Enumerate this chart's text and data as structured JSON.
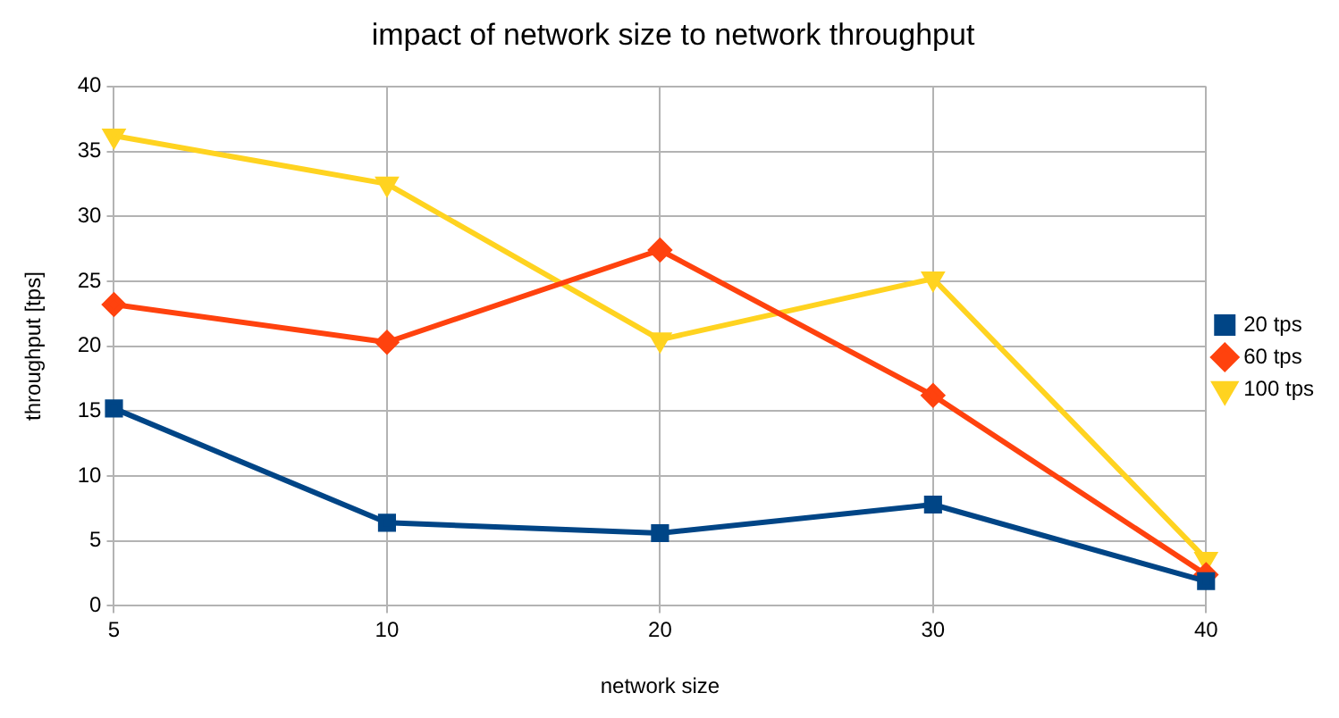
{
  "chart_data": {
    "type": "line",
    "title": "impact of network size to network throughput",
    "xlabel": "network size",
    "ylabel": "throughput [tps]",
    "categories": [
      "5",
      "10",
      "20",
      "30",
      "40"
    ],
    "series": [
      {
        "name": "20 tps",
        "color": "#004586",
        "marker": "square",
        "values": [
          15.2,
          6.4,
          5.6,
          7.8,
          1.9
        ]
      },
      {
        "name": "60 tps",
        "color": "#ff420e",
        "marker": "diamond",
        "values": [
          23.2,
          20.3,
          27.4,
          16.2,
          2.4
        ]
      },
      {
        "name": "100 tps",
        "color": "#ffd320",
        "marker": "triangle-down",
        "values": [
          36.2,
          32.5,
          20.5,
          25.2,
          3.6
        ]
      }
    ],
    "ylim": [
      0,
      40
    ],
    "yticks": [
      0,
      5,
      10,
      15,
      20,
      25,
      30,
      35,
      40
    ],
    "grid": true,
    "legend": "right"
  }
}
